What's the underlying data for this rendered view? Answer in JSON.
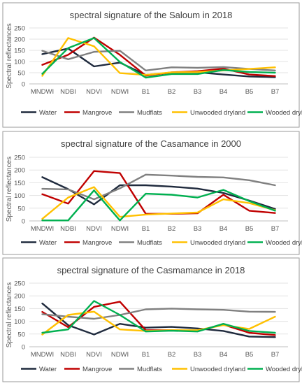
{
  "chart_data": [
    {
      "type": "line",
      "title": "spectral signature of the Saloum in 2018",
      "xlabel": "",
      "ylabel": "Spectral reflectances",
      "ylim": [
        0,
        250
      ],
      "yticks": [
        0,
        50,
        100,
        150,
        200,
        250
      ],
      "grid": true,
      "legend": "bottom",
      "categories": [
        "MNDWI",
        "NDBI",
        "NDVI",
        "NDWI",
        "B1",
        "B2",
        "B3",
        "B4",
        "B5",
        "B7"
      ],
      "series": [
        {
          "name": "Water",
          "color": "#1f2a3d",
          "values": [
            133,
            158,
            78,
            95,
            40,
            50,
            52,
            42,
            33,
            30
          ]
        },
        {
          "name": "Mangrove",
          "color": "#c00000",
          "values": [
            85,
            130,
            207,
            130,
            37,
            52,
            57,
            68,
            42,
            35
          ]
        },
        {
          "name": "Mudflats",
          "color": "#808080",
          "values": [
            148,
            110,
            143,
            148,
            60,
            74,
            72,
            75,
            67,
            60
          ]
        },
        {
          "name": "Unwooded dryland",
          "color": "#ffc000",
          "values": [
            36,
            205,
            168,
            48,
            40,
            52,
            53,
            60,
            67,
            74
          ]
        },
        {
          "name": "Wooded dryland",
          "color": "#00b050",
          "values": [
            45,
            160,
            205,
            98,
            28,
            44,
            44,
            62,
            53,
            50
          ]
        }
      ]
    },
    {
      "type": "line",
      "title": "spectral signature of the Casamance in 2000",
      "xlabel": "",
      "ylabel": "Spectral reflectances",
      "ylim": [
        0,
        250
      ],
      "yticks": [
        0,
        50,
        100,
        150,
        200,
        250
      ],
      "grid": true,
      "legend": "bottom",
      "categories": [
        "MNDWI",
        "NDBI",
        "NDVI",
        "NDWI",
        "B1",
        "B2",
        "B3",
        "B4",
        "B5",
        "B7"
      ],
      "series": [
        {
          "name": "Water",
          "color": "#1f2a3d",
          "values": [
            172,
            125,
            65,
            140,
            140,
            135,
            127,
            110,
            80,
            47
          ]
        },
        {
          "name": "Mangrove",
          "color": "#c00000",
          "values": [
            105,
            68,
            196,
            188,
            28,
            28,
            30,
            103,
            40,
            31
          ]
        },
        {
          "name": "Mudflats",
          "color": "#808080",
          "values": [
            126,
            124,
            85,
            128,
            182,
            178,
            173,
            171,
            160,
            140
          ]
        },
        {
          "name": "Unwooded dryland",
          "color": "#ffc000",
          "values": [
            8,
            92,
            133,
            16,
            25,
            29,
            33,
            85,
            70,
            42
          ]
        },
        {
          "name": "Wooded dryland",
          "color": "#00b050",
          "values": [
            2,
            2,
            120,
            2,
            107,
            103,
            92,
            122,
            78,
            40
          ]
        }
      ]
    },
    {
      "type": "line",
      "title": "spectral signature of the Casmamance in 2018",
      "xlabel": "",
      "ylabel": "Spectral reflectances",
      "ylim": [
        0,
        250
      ],
      "yticks": [
        0,
        50,
        100,
        150,
        200,
        250
      ],
      "grid": true,
      "legend": "bottom",
      "categories": [
        "MNDWI",
        "NDBI",
        "NDVI",
        "NDWI",
        "B1",
        "B2",
        "B3",
        "B4",
        "B5",
        "B7"
      ],
      "series": [
        {
          "name": "Water",
          "color": "#1f2a3d",
          "values": [
            170,
            85,
            48,
            90,
            75,
            78,
            72,
            62,
            40,
            38
          ]
        },
        {
          "name": "Mangrove",
          "color": "#c00000",
          "values": [
            137,
            77,
            157,
            177,
            65,
            65,
            63,
            87,
            55,
            46
          ]
        },
        {
          "name": "Mudflats",
          "color": "#808080",
          "values": [
            128,
            118,
            110,
            125,
            147,
            150,
            147,
            145,
            138,
            137
          ]
        },
        {
          "name": "Unwooded dryland",
          "color": "#ffc000",
          "values": [
            48,
            125,
            138,
            68,
            62,
            65,
            65,
            85,
            70,
            118
          ]
        },
        {
          "name": "Wooded dryland",
          "color": "#00b050",
          "values": [
            55,
            68,
            180,
            125,
            60,
            63,
            60,
            90,
            62,
            55
          ]
        }
      ]
    }
  ]
}
